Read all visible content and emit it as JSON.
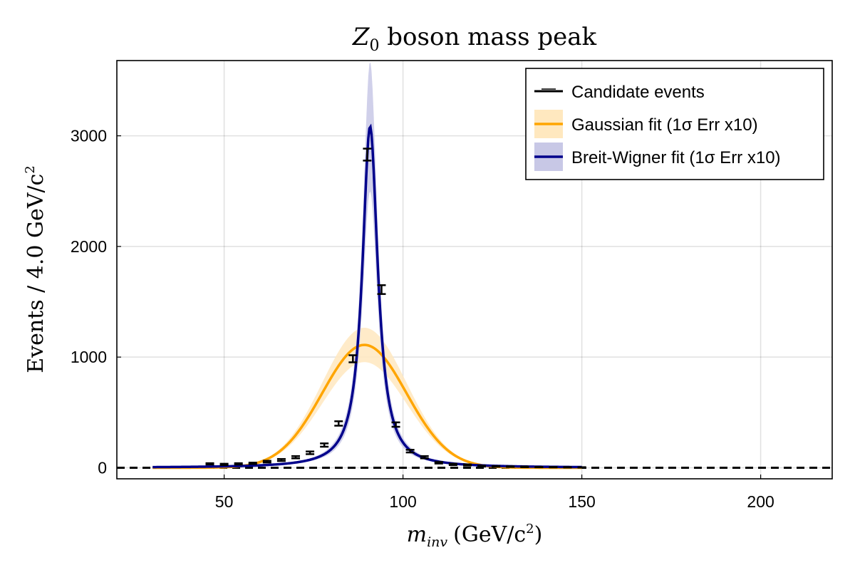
{
  "chart_data": {
    "type": "line",
    "title_main": "Z",
    "title_sub": "0",
    "title_rest": " boson mass peak",
    "xlabel_var": "m",
    "xlabel_sub": "inv",
    "xlabel_units": "(GeV/c",
    "xlabel_units_sup": "2",
    "xlabel_units_close": ")",
    "ylabel_text": "Events / 4.0 GeV/c",
    "ylabel_sup": "2",
    "xlim": [
      20,
      220
    ],
    "ylim": [
      -100,
      3680
    ],
    "xticks": [
      50,
      100,
      150,
      200
    ],
    "xtick_labels": [
      "50",
      "100",
      "150",
      "200"
    ],
    "yticks": [
      0,
      1000,
      2000,
      3000
    ],
    "ytick_labels": [
      "0",
      "1000",
      "2000",
      "3000"
    ],
    "grid": true,
    "legend_position": "top-right",
    "legend": [
      {
        "label": "Candidate events",
        "style": "errorbar",
        "color": "#000000"
      },
      {
        "label": "Gaussian fit (1σ Err x10)",
        "style": "line+band",
        "color": "#FFA500",
        "band_color": "#FFE8BF"
      },
      {
        "label": "Breit-Wigner fit (1σ Err x10)",
        "style": "line+band",
        "color": "#00008B",
        "band_color": "#C8C8E6"
      }
    ],
    "zero_line": {
      "y": 0,
      "style": "dashed",
      "color": "#000000"
    },
    "candidate_events": {
      "x": [
        46,
        50,
        54,
        58,
        62,
        66,
        70,
        74,
        78,
        82,
        86,
        90,
        94,
        98,
        102,
        106,
        110,
        114,
        118,
        122,
        126,
        130,
        134,
        138,
        142,
        146,
        150
      ],
      "y": [
        35,
        30,
        35,
        40,
        55,
        70,
        95,
        135,
        205,
        400,
        985,
        2830,
        1610,
        390,
        150,
        95,
        45,
        30,
        25,
        15,
        12,
        10,
        8,
        6,
        5,
        4,
        3
      ],
      "yerr": [
        6,
        6,
        6,
        6,
        8,
        9,
        10,
        12,
        15,
        20,
        32,
        54,
        40,
        20,
        12,
        10,
        7,
        6,
        5,
        4,
        3,
        3,
        3,
        2,
        2,
        2,
        2
      ]
    },
    "gaussian_fit": {
      "mu": 89.2,
      "sigma": 11.8,
      "amplitude": 1110,
      "x_range": [
        30,
        150
      ],
      "band_rel": 0.14
    },
    "breit_wigner_fit": {
      "m": 90.8,
      "gamma": 5.2,
      "amplitude": 3085,
      "x_range": [
        30,
        150
      ],
      "band_rel": 0.19
    }
  }
}
